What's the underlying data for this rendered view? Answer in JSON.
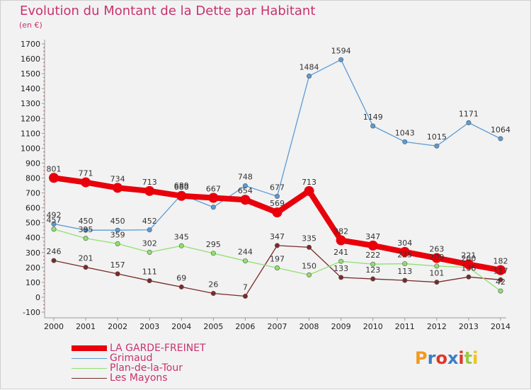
{
  "title": "Evolution du Montant de la Dette par Habitant",
  "unit": "(en €)",
  "logo": "Proxiti",
  "chart_data": {
    "type": "line",
    "x": [
      "2000",
      "2001",
      "2002",
      "2003",
      "2004",
      "2005",
      "2006",
      "2007",
      "2008",
      "2009",
      "2010",
      "2011",
      "2012",
      "2013",
      "2014"
    ],
    "ylim": [
      -100,
      1700
    ],
    "yticks": [
      -100,
      0,
      100,
      200,
      300,
      400,
      500,
      600,
      700,
      800,
      900,
      1000,
      1100,
      1200,
      1300,
      1400,
      1500,
      1600,
      1700
    ],
    "grid": false,
    "legend_position": "bottom-left",
    "series": [
      {
        "name": "LA GARDE-FREINET",
        "color": "#e8000b",
        "values": [
          801,
          771,
          734,
          713,
          680,
          667,
          654,
          569,
          713,
          382,
          347,
          304,
          263,
          221,
          182
        ],
        "labels": [
          "801",
          "771",
          "734",
          "713",
          "680",
          "667",
          "654",
          "569",
          "713",
          "382",
          "347",
          "304",
          "263",
          "221",
          "182"
        ]
      },
      {
        "name": "Grimaud",
        "color": "#5b9bd5",
        "values": [
          492,
          450,
          450,
          452,
          689,
          604,
          748,
          677,
          1484,
          1594,
          1149,
          1043,
          1015,
          1171,
          1064
        ],
        "labels": [
          "492",
          "450",
          "450",
          "452",
          "689",
          "",
          "748",
          "677",
          "1484",
          "1594",
          "1149",
          "1043",
          "1015",
          "1171",
          "1064"
        ]
      },
      {
        "name": "Plan-de-la-Tour",
        "color": "#90e070",
        "values": [
          457,
          395,
          359,
          302,
          345,
          295,
          244,
          197,
          150,
          241,
          222,
          225,
          209,
          200,
          42
        ],
        "labels": [
          "457",
          "395",
          "359",
          "302",
          "345",
          "295",
          "244",
          "197",
          "150",
          "241",
          "222",
          "225",
          "209",
          "200",
          "42"
        ]
      },
      {
        "name": "Les Mayons",
        "color": "#7a2a2a",
        "values": [
          246,
          201,
          157,
          111,
          69,
          26,
          7,
          347,
          335,
          133,
          123,
          113,
          101,
          136,
          117
        ],
        "labels": [
          "246",
          "201",
          "157",
          "111",
          "69",
          "26",
          "7",
          "347",
          "335",
          "133",
          "123",
          "113",
          "101",
          "136",
          "117"
        ]
      }
    ]
  }
}
